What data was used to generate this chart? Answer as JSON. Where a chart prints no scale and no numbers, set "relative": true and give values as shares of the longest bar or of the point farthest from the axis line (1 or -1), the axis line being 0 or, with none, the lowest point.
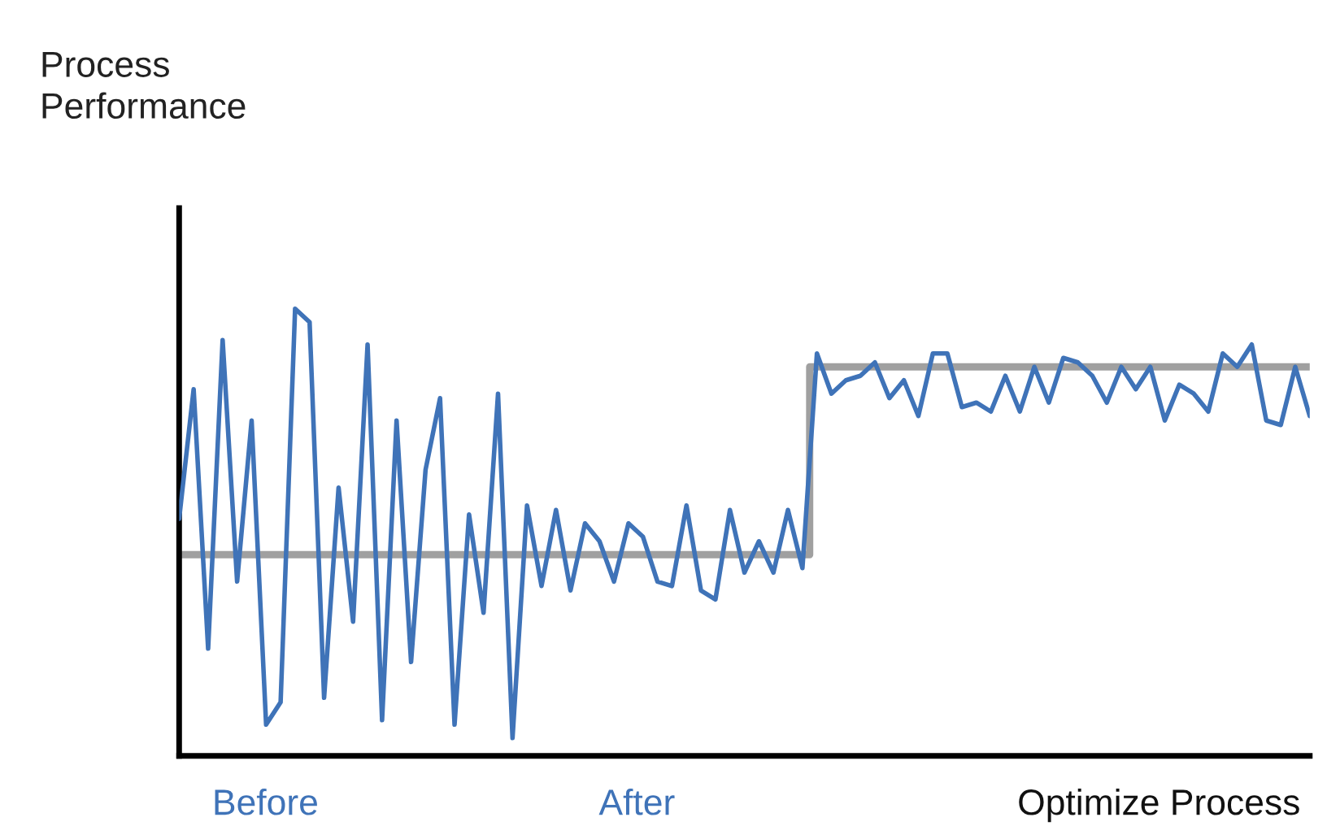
{
  "chart_data": {
    "type": "line",
    "relative": true,
    "xlabel": "Optimize Process",
    "annotations": [
      "Process\nPerformance",
      "Before",
      "After"
    ],
    "categories": [
      null,
      null,
      null,
      null,
      null,
      null,
      null,
      null,
      null,
      null,
      null,
      null,
      null,
      null,
      null,
      null,
      null,
      null,
      null,
      null,
      null,
      null,
      null,
      null,
      null,
      null,
      null,
      null,
      null,
      null,
      null,
      null,
      null,
      null,
      null,
      null,
      null,
      null,
      null,
      null,
      null,
      null,
      null,
      null,
      null,
      null,
      null,
      null,
      null,
      null,
      null,
      null,
      null,
      null,
      null,
      null,
      null,
      null,
      null,
      null,
      null,
      null,
      null,
      null,
      null,
      null,
      null,
      null,
      null,
      null,
      null,
      null,
      null,
      null,
      null,
      null,
      null,
      null,
      null
    ],
    "series": [
      {
        "type": "step",
        "color": "#a0a0a0",
        "values": [
          0.45,
          0.45,
          0.45,
          0.45,
          0.45,
          0.45,
          0.45,
          0.45,
          0.45,
          0.45,
          0.45,
          0.45,
          0.45,
          0.45,
          0.45,
          0.45,
          0.45,
          0.45,
          0.45,
          0.45,
          0.45,
          0.45,
          0.45,
          0.45,
          0.45,
          0.45,
          0.45,
          0.45,
          0.45,
          0.45,
          0.45,
          0.45,
          0.45,
          0.45,
          0.45,
          0.45,
          0.45,
          0.45,
          0.45,
          0.45,
          0.45,
          0.45,
          0.45,
          0.45,
          0.87,
          0.87,
          0.87,
          0.87,
          0.87,
          0.87,
          0.87,
          0.87,
          0.87,
          0.87,
          0.87,
          0.87,
          0.87,
          0.87,
          0.87,
          0.87,
          0.87,
          0.87,
          0.87,
          0.87,
          0.87,
          0.87,
          0.87,
          0.87,
          0.87,
          0.87,
          0.87,
          0.87,
          0.87,
          0.87,
          0.87,
          0.87,
          0.87,
          0.87,
          0.87
        ]
      },
      {
        "type": "line",
        "color": "#3f73b8",
        "values": [
          0.53,
          0.82,
          0.24,
          0.93,
          0.39,
          0.75,
          0.07,
          0.12,
          1.0,
          0.97,
          0.13,
          0.6,
          0.3,
          0.92,
          0.08,
          0.75,
          0.21,
          0.64,
          0.8,
          0.07,
          0.54,
          0.32,
          0.81,
          0.04,
          0.56,
          0.38,
          0.55,
          0.37,
          0.52,
          0.48,
          0.39,
          0.52,
          0.49,
          0.39,
          0.38,
          0.56,
          0.37,
          0.35,
          0.55,
          0.41,
          0.48,
          0.41,
          0.55,
          0.42,
          0.9,
          0.81,
          0.84,
          0.85,
          0.88,
          0.8,
          0.84,
          0.76,
          0.9,
          0.9,
          0.78,
          0.79,
          0.77,
          0.85,
          0.77,
          0.87,
          0.79,
          0.89,
          0.88,
          0.85,
          0.79,
          0.87,
          0.82,
          0.87,
          0.75,
          0.83,
          0.81,
          0.77,
          0.9,
          0.87,
          0.92,
          0.75,
          0.74,
          0.87,
          0.76
        ]
      }
    ]
  }
}
